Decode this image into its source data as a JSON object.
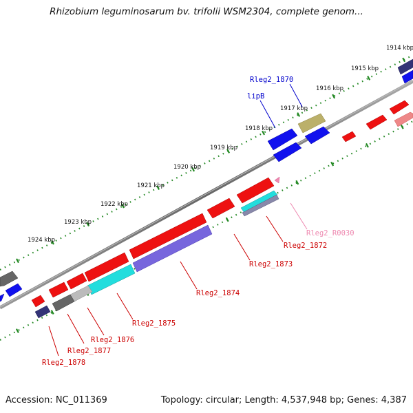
{
  "title": "Rhizobium leguminosarum bv. trifolii WSM2304, complete genom...",
  "footer": {
    "accession": "Accession: NC_011369",
    "summary": "Topology: circular; Length: 4,537,948 bp; Genes: 4,387"
  },
  "scale_labels": [
    "1914 kbp",
    "1915 kbp",
    "1916 kbp",
    "1917 kbp",
    "1918 kbp",
    "1919 kbp",
    "1920 kbp",
    "1921 kbp",
    "1922 kbp",
    "1923 kbp",
    "1924 kbp"
  ],
  "gene_labels": [
    {
      "text": "Rleg2_1870",
      "color": "#0000cc"
    },
    {
      "text": "lipB",
      "color": "#0000cc"
    },
    {
      "text": "Rleg2_R0030",
      "color": "#ee88b0"
    },
    {
      "text": "Rleg2_1872",
      "color": "#cc0000"
    },
    {
      "text": "Rleg2_1873",
      "color": "#cc0000"
    },
    {
      "text": "Rleg2_1874",
      "color": "#cc0000"
    },
    {
      "text": "Rleg2_1875",
      "color": "#cc0000"
    },
    {
      "text": "Rleg2_1876",
      "color": "#cc0000"
    },
    {
      "text": "Rleg2_1877",
      "color": "#cc0000"
    },
    {
      "text": "Rleg2_1878",
      "color": "#cc0000"
    }
  ],
  "colors": {
    "backbone": "#808080",
    "tick_dots": "#228822",
    "red_gene": "#ee1111",
    "blue_gene": "#1111ee",
    "purple_gene": "#7766dd",
    "cyan_gene": "#22dddd",
    "olive_gene": "#bbb06a",
    "dark_gray_gene": "#666666",
    "light_gray_gene": "#bbbbbb",
    "navy_gene": "#333377",
    "pink_gene": "#ee8888"
  }
}
